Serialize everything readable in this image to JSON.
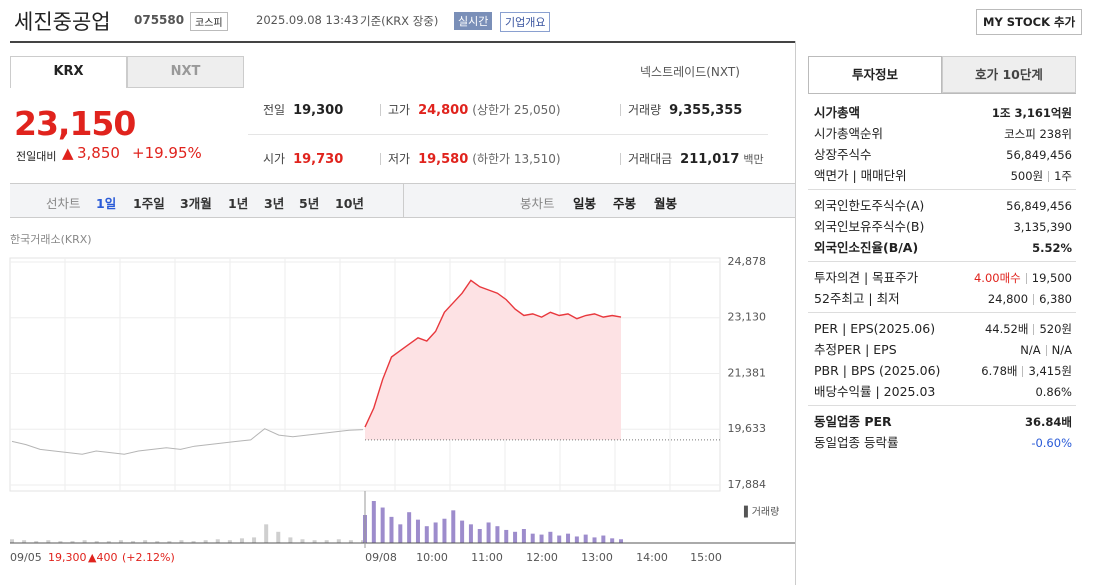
{
  "header": {
    "name": "세진중공업",
    "code": "075580",
    "market": "코스피",
    "datetime": "2025.09.08 13:43",
    "basis": "기준(KRX 장중)",
    "realtime": "실시간",
    "overview": "기업개요",
    "mystock": "MY STOCK 추가"
  },
  "tabs": [
    "KRX",
    "NXT"
  ],
  "nxt_link": "넥스트레이드(NXT)",
  "price": {
    "current": "23,150",
    "change_label": "전일대비",
    "change": "3,850",
    "rate": "+19.95%"
  },
  "stats": [
    [
      {
        "label": "전일",
        "value": "19,300"
      },
      {
        "label": "고가",
        "value": "24,800",
        "note": "(상한가 25,050)"
      },
      {
        "label": "거래량",
        "value": "9,355,355"
      }
    ],
    [
      {
        "label": "시가",
        "value": "19,730"
      },
      {
        "label": "저가",
        "value": "19,580",
        "note": "(하한가 13,510)"
      },
      {
        "label": "거래대금",
        "value": "211,017",
        "unit": "백만"
      }
    ]
  ],
  "chart_menu": {
    "line": "선차트",
    "periods": [
      "1일",
      "1주일",
      "3개월",
      "1년",
      "3년",
      "5년",
      "10년"
    ],
    "candle": "봉차트",
    "candles": [
      "일봉",
      "주봉",
      "월봉"
    ]
  },
  "chart_data": {
    "type": "line",
    "source": "한국거래소(KRX)",
    "ylim": [
      17884,
      24878
    ],
    "yticks": [
      {
        "value": 24878,
        "label": "24,878"
      },
      {
        "value": 23130,
        "label": "23,130"
      },
      {
        "value": 21381,
        "label": "21,381"
      },
      {
        "value": 19633,
        "label": "19,633"
      },
      {
        "value": 17884,
        "label": "17,884"
      }
    ],
    "baseline": 19300,
    "grid": true,
    "series": [
      {
        "color": "#b5b5b5",
        "values": [
          19250,
          19150,
          19000,
          18950,
          18900,
          18850,
          18950,
          18900,
          18850,
          18950,
          19000,
          19050,
          19000,
          19100,
          19150,
          19200,
          19250,
          19300,
          19650,
          19450,
          19400,
          19450,
          19500,
          19550,
          19600,
          19620
        ]
      },
      {
        "color": "#e8383d",
        "fill": "#fde2e4",
        "values": [
          19700,
          20300,
          21200,
          21900,
          22100,
          22300,
          22500,
          22400,
          22700,
          23300,
          23600,
          23900,
          24300,
          24100,
          24000,
          23900,
          23700,
          23400,
          23200,
          23250,
          23150,
          23300,
          23200,
          23250,
          23100,
          23200,
          23250,
          23150,
          23200,
          23150
        ]
      }
    ],
    "volume_label": "거래량",
    "volume": [
      {
        "color": "#cfcfcf",
        "values": [
          4,
          3,
          2,
          3,
          2,
          2,
          3,
          2,
          2,
          3,
          2,
          3,
          2,
          2,
          3,
          2,
          3,
          4,
          3,
          5,
          6,
          20,
          12,
          6,
          4,
          3,
          3,
          4,
          3,
          3
        ]
      },
      {
        "color": "#9d8ccc",
        "values": [
          30,
          45,
          38,
          28,
          20,
          33,
          25,
          18,
          22,
          26,
          35,
          24,
          20,
          15,
          22,
          18,
          14,
          12,
          15,
          10,
          9,
          12,
          8,
          10,
          7,
          9,
          6,
          8,
          5,
          4
        ]
      }
    ],
    "xlabels": [
      "09/08",
      "10:00",
      "11:00",
      "12:00",
      "13:00",
      "14:00",
      "15:00"
    ],
    "footer": {
      "date": "09/05",
      "close": "19,300",
      "change": "400",
      "rate": "(+2.12%)"
    }
  },
  "right": {
    "tabs": [
      "투자정보",
      "호가 10단계"
    ],
    "sections": [
      [
        {
          "label": "시가총액",
          "values": [
            "1조 3,161억원"
          ],
          "bold": true
        },
        {
          "label": "시가총액순위",
          "values": [
            "코스피 238위"
          ]
        },
        {
          "label": "상장주식수",
          "values": [
            "56,849,456"
          ]
        },
        {
          "label": "액면가 | 매매단위",
          "values": [
            "500원",
            "1주"
          ]
        }
      ],
      [
        {
          "label": "외국인한도주식수(A)",
          "values": [
            "56,849,456"
          ]
        },
        {
          "label": "외국인보유주식수(B)",
          "values": [
            "3,135,390"
          ]
        },
        {
          "label": "외국인소진율(B/A)",
          "values": [
            "5.52%"
          ],
          "bold": true
        }
      ],
      [
        {
          "label": "투자의견 | 목표주가",
          "values": [
            "4.00매수",
            "19,500"
          ],
          "highlight": "#e0231d"
        },
        {
          "label": "52주최고 | 최저",
          "values": [
            "24,800",
            "6,380"
          ]
        }
      ],
      [
        {
          "label": "PER | EPS(2025.06)",
          "values": [
            "44.52배",
            "520원"
          ]
        },
        {
          "label": "추정PER | EPS",
          "values": [
            "N/A",
            "N/A"
          ]
        },
        {
          "label": "PBR | BPS (2025.06)",
          "values": [
            "6.78배",
            "3,415원"
          ]
        },
        {
          "label": "배당수익률 | 2025.03",
          "values": [
            "0.86%"
          ]
        }
      ],
      [
        {
          "label": "동일업종 PER",
          "values": [
            "36.84배"
          ],
          "bold": true
        },
        {
          "label": "동일업종 등락률",
          "values": [
            "-0.60%"
          ],
          "highlight": "#2a5bd7"
        }
      ]
    ]
  }
}
